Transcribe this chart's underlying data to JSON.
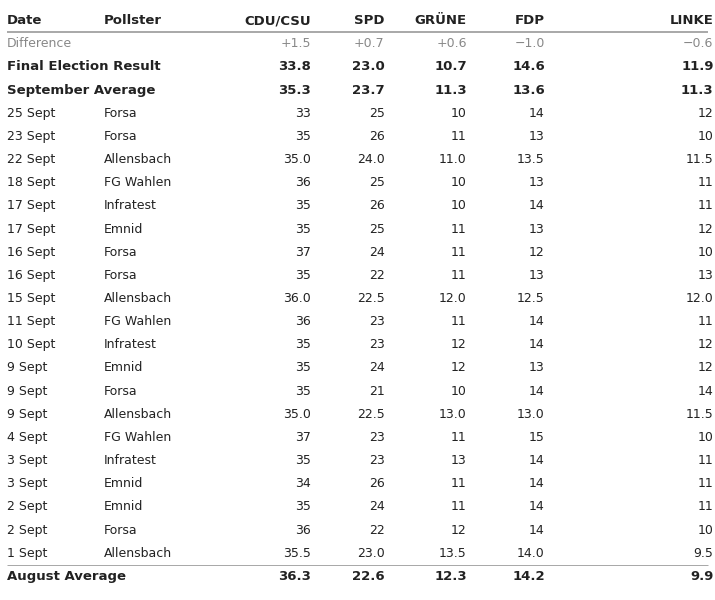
{
  "headers": [
    "Date",
    "Pollster",
    "CDU/CSU",
    "SPD",
    "GRÜNE",
    "FDP",
    "LINKE"
  ],
  "difference_row": [
    "Difference",
    "",
    "+1.5",
    "+0.7",
    "+0.6",
    "−1.0",
    "−0.6"
  ],
  "final_row": [
    "Final Election Result",
    "",
    "33.8",
    "23.0",
    "10.7",
    "14.6",
    "11.9"
  ],
  "sept_avg_row": [
    "September Average",
    "",
    "35.3",
    "23.7",
    "11.3",
    "13.6",
    "11.3"
  ],
  "data_rows": [
    [
      "25 Sept",
      "Forsa",
      "33",
      "25",
      "10",
      "14",
      "12"
    ],
    [
      "23 Sept",
      "Forsa",
      "35",
      "26",
      "11",
      "13",
      "10"
    ],
    [
      "22 Sept",
      "Allensbach",
      "35.0",
      "24.0",
      "11.0",
      "13.5",
      "11.5"
    ],
    [
      "18 Sept",
      "FG Wahlen",
      "36",
      "25",
      "10",
      "13",
      "11"
    ],
    [
      "17 Sept",
      "Infratest",
      "35",
      "26",
      "10",
      "14",
      "11"
    ],
    [
      "17 Sept",
      "Emnid",
      "35",
      "25",
      "11",
      "13",
      "12"
    ],
    [
      "16 Sept",
      "Forsa",
      "37",
      "24",
      "11",
      "12",
      "10"
    ],
    [
      "16 Sept",
      "Forsa",
      "35",
      "22",
      "11",
      "13",
      "13"
    ],
    [
      "15 Sept",
      "Allensbach",
      "36.0",
      "22.5",
      "12.0",
      "12.5",
      "12.0"
    ],
    [
      "11 Sept",
      "FG Wahlen",
      "36",
      "23",
      "11",
      "14",
      "11"
    ],
    [
      "10 Sept",
      "Infratest",
      "35",
      "23",
      "12",
      "14",
      "12"
    ],
    [
      "9 Sept",
      "Emnid",
      "35",
      "24",
      "12",
      "13",
      "12"
    ],
    [
      "9 Sept",
      "Forsa",
      "35",
      "21",
      "10",
      "14",
      "14"
    ],
    [
      "9 Sept",
      "Allensbach",
      "35.0",
      "22.5",
      "13.0",
      "13.0",
      "11.5"
    ],
    [
      "4 Sept",
      "FG Wahlen",
      "37",
      "23",
      "11",
      "15",
      "10"
    ],
    [
      "3 Sept",
      "Infratest",
      "35",
      "23",
      "13",
      "14",
      "11"
    ],
    [
      "3 Sept",
      "Emnid",
      "34",
      "26",
      "11",
      "14",
      "11"
    ],
    [
      "2 Sept",
      "Emnid",
      "35",
      "24",
      "11",
      "14",
      "11"
    ],
    [
      "2 Sept",
      "Forsa",
      "36",
      "22",
      "12",
      "14",
      "10"
    ],
    [
      "1 Sept",
      "Allensbach",
      "35.5",
      "23.0",
      "13.5",
      "14.0",
      "9.5"
    ]
  ],
  "aug_avg_row": [
    "August Average",
    "",
    "36.3",
    "22.6",
    "12.3",
    "14.2",
    "9.9"
  ],
  "col_aligns": [
    "left",
    "left",
    "right",
    "right",
    "right",
    "right",
    "right"
  ],
  "background_color": "#ffffff",
  "header_fontsize": 9.5,
  "body_fontsize": 9.0,
  "text_color_normal": "#222222",
  "text_color_diff": "#888888",
  "separator_color": "#999999"
}
